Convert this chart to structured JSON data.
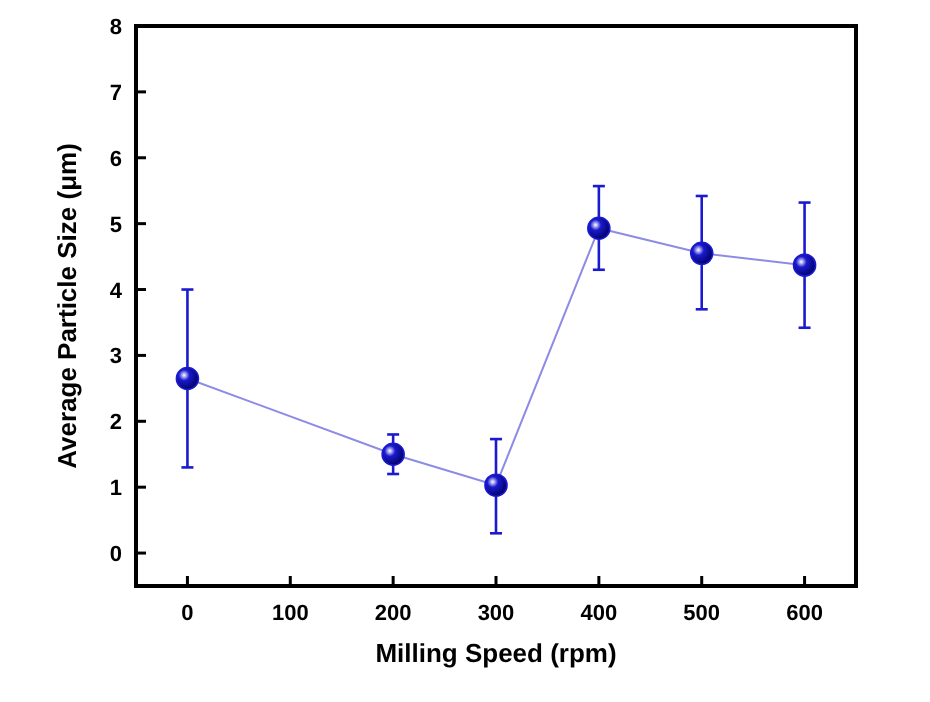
{
  "chart_data": {
    "type": "line",
    "xlabel": "Milling Speed (rpm)",
    "ylabel": "Average Particle Size (μm)",
    "x": [
      0,
      200,
      300,
      400,
      500,
      600
    ],
    "series": [
      {
        "color": "#1a1ad0",
        "values": [
          2.65,
          1.5,
          1.03,
          4.93,
          4.55,
          4.37
        ],
        "errors": [
          [
            1.3,
            4.0
          ],
          [
            1.2,
            1.8
          ],
          [
            0.3,
            1.73
          ],
          [
            4.3,
            5.57
          ],
          [
            3.7,
            5.42
          ],
          [
            3.42,
            5.32
          ]
        ]
      }
    ],
    "xlim": [
      -50,
      650
    ],
    "xticks": [
      0,
      100,
      200,
      300,
      400,
      500,
      600
    ],
    "ylim": [
      -0.5,
      8
    ],
    "yticks": [
      0,
      1,
      2,
      3,
      4,
      5,
      6,
      7,
      8
    ],
    "grid": false,
    "marker": "circle",
    "line_style": "solid"
  }
}
